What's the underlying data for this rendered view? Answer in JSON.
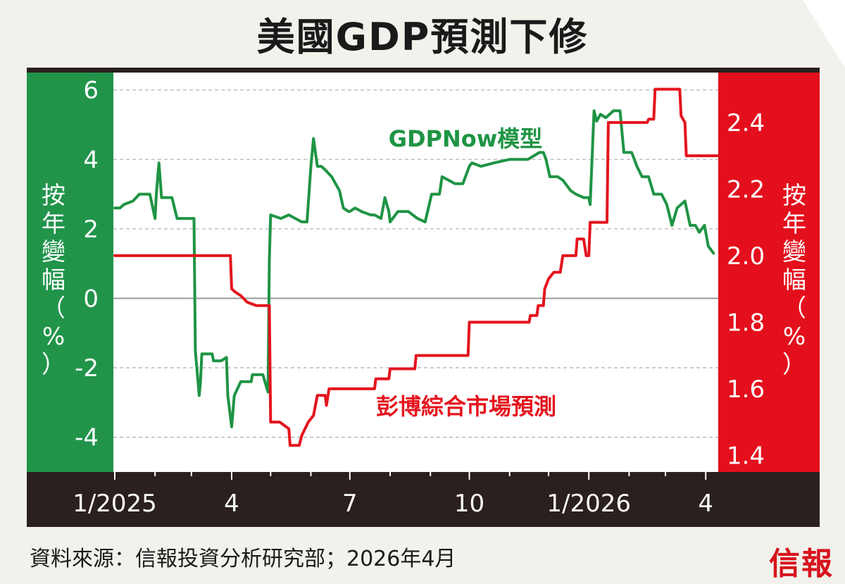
{
  "title": "美國GDP預測下修",
  "source": "資料來源：信報投資分析研究部；2026年4月",
  "logo": "信報",
  "colors": {
    "green": "#1f9444",
    "red": "#e4141e",
    "frame": "#2a201d"
  },
  "chart_data": {
    "type": "line",
    "title": "美國GDP預測下修",
    "x_ticks": [
      "1/2025",
      "4",
      "7",
      "10",
      "1/2026",
      "4"
    ],
    "y_left": {
      "label": "按年變幅（%）",
      "label_chars": [
        "按",
        "年",
        "變",
        "幅",
        "（",
        "%",
        "）"
      ],
      "ticks": [
        "6",
        "4",
        "2",
        "0",
        "-2",
        "-4"
      ],
      "ylim": [
        -5,
        6.5
      ]
    },
    "y_right": {
      "label": "按年變幅（%）",
      "label_chars": [
        "按",
        "年",
        "變",
        "幅",
        "（",
        "%",
        "）"
      ],
      "ticks": [
        "2.4",
        "2.2",
        "2.0",
        "1.8",
        "1.6",
        "1.4"
      ],
      "ylim": [
        1.35,
        2.55
      ]
    },
    "grid": "dashed horizontal",
    "series": [
      {
        "name": "GDPNow模型",
        "axis": "left",
        "color": "#1f9444",
        "points": [
          [
            "2025-01-01",
            2.6
          ],
          [
            "2025-01-05",
            2.6
          ],
          [
            "2025-01-08",
            2.7
          ],
          [
            "2025-01-15",
            2.8
          ],
          [
            "2025-01-20",
            3.0
          ],
          [
            "2025-01-28",
            3.0
          ],
          [
            "2025-02-01",
            2.3
          ],
          [
            "2025-02-02",
            3.0
          ],
          [
            "2025-02-04",
            3.9
          ],
          [
            "2025-02-06",
            2.9
          ],
          [
            "2025-02-14",
            2.9
          ],
          [
            "2025-02-18",
            2.3
          ],
          [
            "2025-03-03",
            2.3
          ],
          [
            "2025-03-04",
            -1.5
          ],
          [
            "2025-03-07",
            -2.8
          ],
          [
            "2025-03-08",
            -2.4
          ],
          [
            "2025-03-09",
            -1.6
          ],
          [
            "2025-03-17",
            -1.6
          ],
          [
            "2025-03-18",
            -1.8
          ],
          [
            "2025-03-24",
            -1.8
          ],
          [
            "2025-03-28",
            -1.7
          ],
          [
            "2025-03-29",
            -2.8
          ],
          [
            "2025-04-01",
            -3.7
          ],
          [
            "2025-04-03",
            -2.8
          ],
          [
            "2025-04-08",
            -2.4
          ],
          [
            "2025-04-16",
            -2.4
          ],
          [
            "2025-04-17",
            -2.2
          ],
          [
            "2025-04-25",
            -2.2
          ],
          [
            "2025-04-29",
            -2.7
          ],
          [
            "2025-04-30",
            1.1
          ],
          [
            "2025-05-01",
            2.4
          ],
          [
            "2025-05-09",
            2.3
          ],
          [
            "2025-05-15",
            2.4
          ],
          [
            "2025-05-20",
            2.3
          ],
          [
            "2025-05-25",
            2.2
          ],
          [
            "2025-05-29",
            2.2
          ],
          [
            "2025-06-01",
            3.8
          ],
          [
            "2025-06-03",
            4.6
          ],
          [
            "2025-06-06",
            3.8
          ],
          [
            "2025-06-09",
            3.8
          ],
          [
            "2025-06-12",
            3.7
          ],
          [
            "2025-06-17",
            3.5
          ],
          [
            "2025-06-23",
            3.1
          ],
          [
            "2025-06-26",
            2.6
          ],
          [
            "2025-06-30",
            2.5
          ],
          [
            "2025-07-01",
            2.5
          ],
          [
            "2025-07-05",
            2.6
          ],
          [
            "2025-07-10",
            2.5
          ],
          [
            "2025-07-17",
            2.4
          ],
          [
            "2025-07-20",
            2.4
          ],
          [
            "2025-07-25",
            2.3
          ],
          [
            "2025-07-28",
            2.9
          ],
          [
            "2025-07-31",
            2.5
          ],
          [
            "2025-08-01",
            2.2
          ],
          [
            "2025-08-07",
            2.5
          ],
          [
            "2025-08-15",
            2.5
          ],
          [
            "2025-08-22",
            2.3
          ],
          [
            "2025-08-28",
            2.2
          ],
          [
            "2025-09-02",
            3.0
          ],
          [
            "2025-09-08",
            3.0
          ],
          [
            "2025-09-10",
            3.5
          ],
          [
            "2025-09-15",
            3.4
          ],
          [
            "2025-09-20",
            3.3
          ],
          [
            "2025-09-26",
            3.3
          ],
          [
            "2025-10-01",
            3.8
          ],
          [
            "2025-10-03",
            3.9
          ],
          [
            "2025-10-10",
            3.8
          ],
          [
            "2025-10-20",
            3.9
          ],
          [
            "2025-11-01",
            4.0
          ],
          [
            "2025-11-15",
            4.0
          ],
          [
            "2025-11-24",
            4.2
          ],
          [
            "2025-11-27",
            4.2
          ],
          [
            "2025-11-29",
            4.0
          ],
          [
            "2025-12-02",
            3.5
          ],
          [
            "2025-12-08",
            3.5
          ],
          [
            "2025-12-12",
            3.4
          ],
          [
            "2025-12-18",
            3.1
          ],
          [
            "2025-12-22",
            3.0
          ],
          [
            "2025-12-28",
            2.9
          ],
          [
            "2026-01-01",
            2.9
          ],
          [
            "2026-01-02",
            2.7
          ],
          [
            "2026-01-05",
            5.4
          ],
          [
            "2026-01-07",
            5.1
          ],
          [
            "2026-01-10",
            5.3
          ],
          [
            "2026-01-14",
            5.2
          ],
          [
            "2026-01-20",
            5.4
          ],
          [
            "2026-01-25",
            5.4
          ],
          [
            "2026-01-28",
            4.2
          ],
          [
            "2026-02-03",
            4.2
          ],
          [
            "2026-02-07",
            3.8
          ],
          [
            "2026-02-11",
            3.5
          ],
          [
            "2026-02-16",
            3.5
          ],
          [
            "2026-02-20",
            3.0
          ],
          [
            "2026-02-26",
            3.0
          ],
          [
            "2026-03-02",
            2.7
          ],
          [
            "2026-03-06",
            2.1
          ],
          [
            "2026-03-10",
            2.6
          ],
          [
            "2026-03-16",
            2.8
          ],
          [
            "2026-03-20",
            2.1
          ],
          [
            "2026-03-24",
            2.1
          ],
          [
            "2026-03-27",
            1.9
          ],
          [
            "2026-03-31",
            2.1
          ],
          [
            "2026-04-03",
            1.5
          ],
          [
            "2026-04-07",
            1.3
          ]
        ]
      },
      {
        "name": "彭博綜合市場預測",
        "axis": "right",
        "color": "#e4141e",
        "points": [
          [
            "2025-01-01",
            2.0
          ],
          [
            "2025-03-31",
            2.0
          ],
          [
            "2025-04-01",
            1.9
          ],
          [
            "2025-04-04",
            1.89
          ],
          [
            "2025-04-08",
            1.88
          ],
          [
            "2025-04-13",
            1.86
          ],
          [
            "2025-04-20",
            1.85
          ],
          [
            "2025-04-30",
            1.85
          ],
          [
            "2025-05-01",
            1.5
          ],
          [
            "2025-05-08",
            1.5
          ],
          [
            "2025-05-15",
            1.48
          ],
          [
            "2025-05-16",
            1.43
          ],
          [
            "2025-05-23",
            1.43
          ],
          [
            "2025-05-25",
            1.46
          ],
          [
            "2025-05-30",
            1.5
          ],
          [
            "2025-06-03",
            1.52
          ],
          [
            "2025-06-06",
            1.58
          ],
          [
            "2025-06-12",
            1.58
          ],
          [
            "2025-06-13",
            1.55
          ],
          [
            "2025-06-15",
            1.6
          ],
          [
            "2025-06-20",
            1.6
          ],
          [
            "2025-07-20",
            1.6
          ],
          [
            "2025-07-21",
            1.63
          ],
          [
            "2025-07-31",
            1.63
          ],
          [
            "2025-08-01",
            1.66
          ],
          [
            "2025-08-20",
            1.66
          ],
          [
            "2025-08-21",
            1.7
          ],
          [
            "2025-09-30",
            1.7
          ],
          [
            "2025-10-01",
            1.8
          ],
          [
            "2025-11-16",
            1.8
          ],
          [
            "2025-11-17",
            1.82
          ],
          [
            "2025-11-22",
            1.82
          ],
          [
            "2025-11-23",
            1.85
          ],
          [
            "2025-11-27",
            1.85
          ],
          [
            "2025-11-28",
            1.9
          ],
          [
            "2025-12-01",
            1.93
          ],
          [
            "2025-12-05",
            1.95
          ],
          [
            "2025-12-10",
            1.95
          ],
          [
            "2025-12-12",
            2.0
          ],
          [
            "2025-12-22",
            2.0
          ],
          [
            "2025-12-23",
            2.05
          ],
          [
            "2025-12-28",
            2.05
          ],
          [
            "2025-12-30",
            2.0
          ],
          [
            "2026-01-01",
            2.0
          ],
          [
            "2026-01-02",
            2.1
          ],
          [
            "2026-01-15",
            2.1
          ],
          [
            "2026-01-16",
            2.4
          ],
          [
            "2026-02-15",
            2.4
          ],
          [
            "2026-02-16",
            2.41
          ],
          [
            "2026-02-20",
            2.41
          ],
          [
            "2026-02-21",
            2.5
          ],
          [
            "2026-03-12",
            2.5
          ],
          [
            "2026-03-13",
            2.42
          ],
          [
            "2026-03-16",
            2.4
          ],
          [
            "2026-03-17",
            2.3
          ],
          [
            "2026-04-12",
            2.3
          ]
        ]
      }
    ],
    "annotations": [
      {
        "text": "GDPNow模型",
        "color": "#1f9444"
      },
      {
        "text": "彭博綜合市場預測",
        "color": "#e4141e"
      }
    ]
  }
}
